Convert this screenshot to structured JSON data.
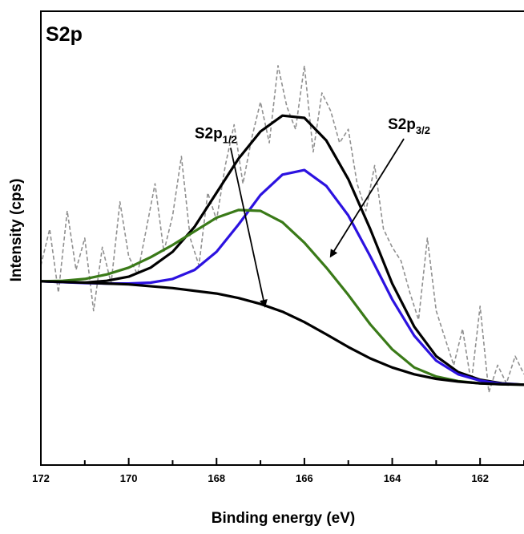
{
  "chart_data": {
    "type": "line",
    "panel_label": "S2p",
    "xlabel": "Binding energy (eV)",
    "ylabel": "Intensity (cps)",
    "xlim": [
      172,
      161
    ],
    "x_reversed": true,
    "ylim": [
      0,
      100
    ],
    "y_ticks_shown": false,
    "x_ticks": [
      172,
      170,
      168,
      166,
      164,
      162
    ],
    "grid": false,
    "legend": "none",
    "annotations": [
      {
        "base": "S2p",
        "sub": "1/2",
        "x": 168.5,
        "y": 72,
        "arrow_to": [
          166.9,
          35
        ]
      },
      {
        "base": "S2p",
        "sub": "3/2",
        "x": 164.1,
        "y": 74,
        "arrow_to": [
          165.4,
          46
        ]
      }
    ],
    "series": [
      {
        "role": "raw data",
        "color": "#909090",
        "dashed": true,
        "x": [
          172,
          171.8,
          171.6,
          171.4,
          171.2,
          171.0,
          170.8,
          170.6,
          170.4,
          170.2,
          170.0,
          169.8,
          169.6,
          169.4,
          169.2,
          169.0,
          168.8,
          168.6,
          168.4,
          168.2,
          168.0,
          167.8,
          167.6,
          167.4,
          167.2,
          167.0,
          166.8,
          166.6,
          166.4,
          166.2,
          166.0,
          165.8,
          165.6,
          165.4,
          165.2,
          165.0,
          164.8,
          164.6,
          164.4,
          164.2,
          164.0,
          163.8,
          163.6,
          163.4,
          163.2,
          163.0,
          162.8,
          162.6,
          162.4,
          162.2,
          162.0,
          161.8,
          161.6,
          161.4,
          161.2,
          161.0
        ],
        "y": [
          44,
          52,
          38,
          56,
          43,
          50,
          34,
          48,
          40,
          58,
          46,
          42,
          52,
          62,
          47,
          55,
          68,
          50,
          44,
          60,
          54,
          66,
          75,
          62,
          72,
          80,
          71,
          88,
          79,
          74,
          88,
          69,
          82,
          78,
          71,
          74,
          62,
          56,
          66,
          52,
          48,
          45,
          38,
          32,
          50,
          34,
          28,
          22,
          30,
          18,
          35,
          16,
          22,
          18,
          24,
          20
        ]
      },
      {
        "role": "envelope",
        "color": "#000000",
        "dashed": false,
        "x": [
          172,
          171.5,
          171,
          170.5,
          170,
          169.5,
          169,
          168.5,
          168,
          167.5,
          167,
          166.5,
          166,
          165.5,
          165,
          164.5,
          164,
          163.5,
          163,
          162.5,
          162,
          161.5,
          161
        ],
        "y": [
          40.5,
          40.3,
          40.2,
          40.6,
          41.5,
          43.5,
          47.0,
          52.5,
          60.0,
          67.5,
          73.5,
          77.0,
          76.5,
          71.5,
          63.0,
          52.0,
          40.0,
          30.5,
          24.0,
          20.5,
          18.8,
          18.0,
          17.7
        ]
      },
      {
        "role": "S2p3/2 component",
        "color": "#2c12e0",
        "dashed": false,
        "x": [
          172,
          171.5,
          171,
          170.5,
          170,
          169.5,
          169,
          168.5,
          168,
          167.5,
          167,
          166.5,
          166,
          165.5,
          165,
          164.5,
          164,
          163.5,
          163,
          162.5,
          162,
          161.5,
          161
        ],
        "y": [
          40.5,
          40.3,
          40.1,
          40.0,
          40.0,
          40.2,
          41.0,
          43.0,
          47.0,
          53.0,
          59.5,
          64.0,
          65.0,
          61.5,
          55.0,
          46.0,
          36.5,
          28.5,
          23.0,
          20.0,
          18.6,
          17.9,
          17.7
        ]
      },
      {
        "role": "S2p1/2 component",
        "color": "#3a7a18",
        "dashed": false,
        "x": [
          172,
          171.5,
          171,
          170.5,
          170,
          169.5,
          169,
          168.5,
          168,
          167.5,
          167,
          166.5,
          166,
          165.5,
          165,
          164.5,
          164,
          163.5,
          163,
          162.5,
          162,
          161.5,
          161
        ],
        "y": [
          40.5,
          40.6,
          41.0,
          42.0,
          43.5,
          45.8,
          48.5,
          51.5,
          54.5,
          56.2,
          56.0,
          53.5,
          49.0,
          43.5,
          37.5,
          31.0,
          25.5,
          21.5,
          19.5,
          18.5,
          18.0,
          17.8,
          17.7
        ]
      },
      {
        "role": "background",
        "color": "#000000",
        "dashed": false,
        "x": [
          172,
          171,
          170,
          169,
          168,
          167.5,
          167,
          166.5,
          166,
          165.5,
          165,
          164.5,
          164,
          163.5,
          163,
          162.5,
          162,
          161.5,
          161
        ],
        "y": [
          40.5,
          40.2,
          39.8,
          39.0,
          37.8,
          36.8,
          35.5,
          33.8,
          31.5,
          28.8,
          26.0,
          23.5,
          21.5,
          20.0,
          19.0,
          18.4,
          18.0,
          17.8,
          17.7
        ]
      }
    ]
  }
}
